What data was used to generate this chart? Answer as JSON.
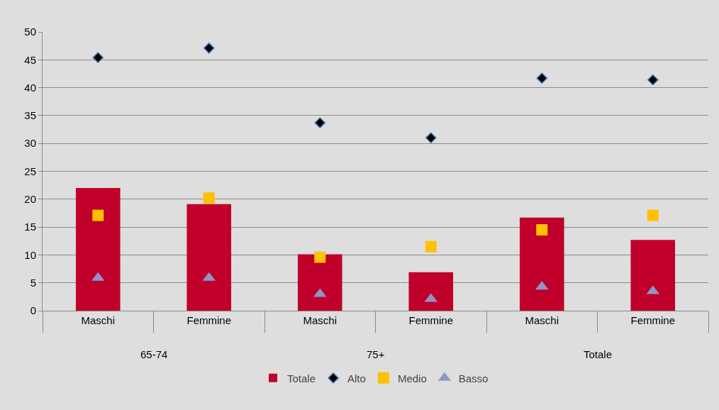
{
  "chart_data": {
    "type": "bar",
    "categories": [
      "Maschi",
      "Femmine",
      "Maschi",
      "Femmine",
      "Maschi",
      "Femmine"
    ],
    "series": [
      {
        "name": "Totale",
        "color": "#c0002a",
        "values": [
          22.0,
          19.1,
          10.1,
          6.9,
          16.7,
          12.7
        ]
      },
      {
        "name": "Alto",
        "type": "scatter",
        "marker": "diamond",
        "color": "#000000",
        "values": [
          45.4,
          47.1,
          33.7,
          31.0,
          41.7,
          41.4
        ]
      },
      {
        "name": "Medio",
        "type": "scatter",
        "marker": "square",
        "color": "#ffc000",
        "values": [
          17.1,
          20.2,
          9.6,
          11.5,
          14.5,
          17.1
        ]
      },
      {
        "name": "Basso",
        "type": "scatter",
        "marker": "triangle",
        "color": "#8e96c8",
        "values": [
          5.9,
          5.9,
          3.0,
          2.1,
          4.3,
          3.5
        ]
      }
    ],
    "annotations": [
      "65-74",
      "75+",
      "Totale"
    ],
    "ylim": [
      0,
      50
    ],
    "yticks": [
      0,
      5,
      10,
      15,
      20,
      25,
      30,
      35,
      40,
      45,
      50
    ],
    "grid": "y",
    "legend": "bottom"
  }
}
